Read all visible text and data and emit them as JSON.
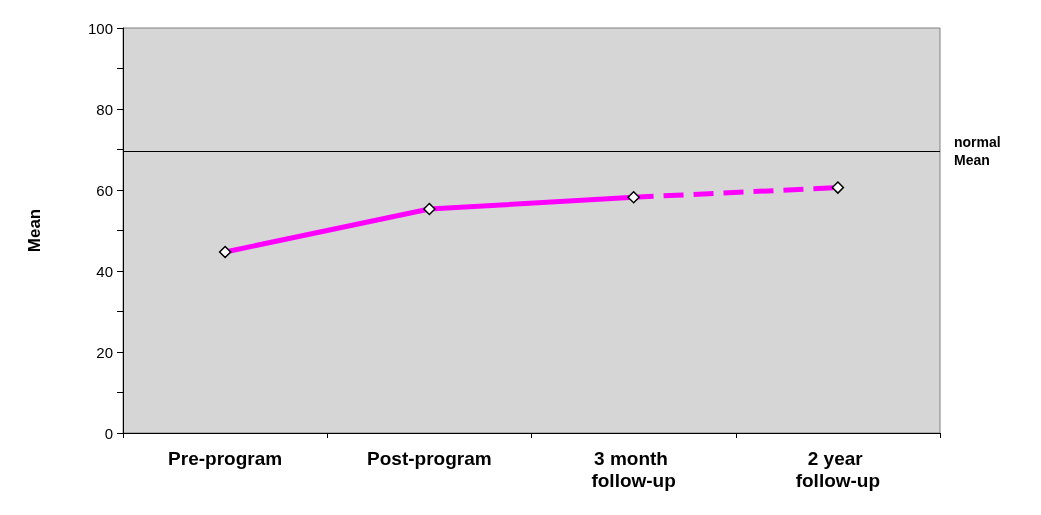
{
  "chart_data": {
    "type": "line",
    "ylabel": "Mean",
    "categories": [
      "Pre-program",
      "Post-program",
      "3 month follow-up",
      "2 year follow-up"
    ],
    "series": [
      {
        "color": "#ff00ff",
        "line_style": "solid",
        "values": [
          44.7,
          55.3,
          58.2,
          null
        ]
      },
      {
        "color": "#ff00ff",
        "line_style": "dashed",
        "values": [
          null,
          null,
          58.2,
          60.6
        ]
      }
    ],
    "ylim": [
      0,
      100
    ],
    "yticks": [
      0,
      {
        "value": 10,
        "label": null
      },
      20,
      {
        "value": 30,
        "label": null
      },
      40,
      {
        "value": 50,
        "label": null
      },
      60,
      {
        "value": 70,
        "label": null
      },
      80,
      {
        "value": 90,
        "label": null
      },
      100
    ],
    "ref_lines": [
      {
        "axis": "y",
        "value": 69.6,
        "label": "normal Mean",
        "color": "#000000"
      }
    ],
    "marker": "diamond",
    "grid": false
  }
}
